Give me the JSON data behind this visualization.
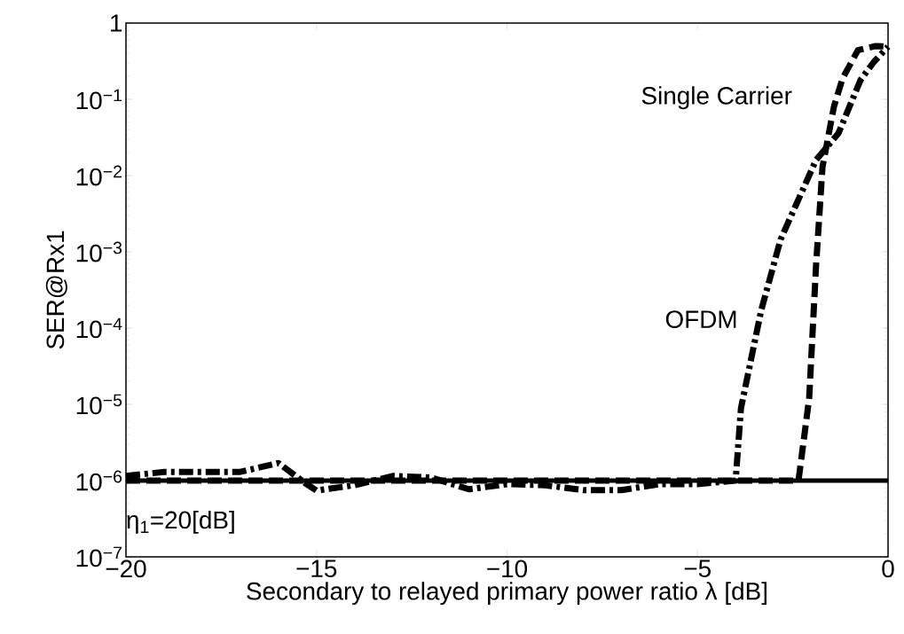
{
  "chart_data": {
    "type": "line",
    "xlabel": "Secondary to relayed primary power ratio λ [dB]",
    "ylabel": "SER@Rx1",
    "log": "y",
    "xlim": [
      -20,
      0
    ],
    "ylim": [
      1e-07,
      1
    ],
    "xticks": [
      {
        "value": -20,
        "label": "−20"
      },
      {
        "value": -15,
        "label": "−15"
      },
      {
        "value": -10,
        "label": "−10"
      },
      {
        "value": -5,
        "label": "−5"
      },
      {
        "value": 0,
        "label": "0"
      }
    ],
    "yticks": [
      {
        "value": 1e-07,
        "label": "10$^{−7}$"
      },
      {
        "value": 1e-06,
        "label": "10$^{−6}$"
      },
      {
        "value": 1e-05,
        "label": "10$^{−5}$"
      },
      {
        "value": 0.0001,
        "label": "10$^{−4}$"
      },
      {
        "value": 0.001,
        "label": "10$^{−3}$"
      },
      {
        "value": 0.01,
        "label": "10$^{−2}$"
      },
      {
        "value": 0.1,
        "label": "10$^{−1}$"
      },
      {
        "value": 1,
        "label": "1"
      }
    ],
    "series": [
      {
        "color": "#000000",
        "line_style": "dashdot",
        "x": [
          -20,
          -19,
          -17,
          -16,
          -15.3,
          -15,
          -14,
          -13,
          -12,
          -11,
          -10,
          -9,
          -8,
          -7,
          -6,
          -5,
          -4,
          -3.86,
          -3.33,
          -2.82,
          -1.89,
          -1.3,
          -0.72,
          -0.37,
          0
        ],
        "values": [
          1.15e-06,
          1.3e-06,
          1.3e-06,
          1.7e-06,
          9.3e-07,
          7.4e-07,
          8.7e-07,
          1.15e-06,
          1.1e-06,
          7.7e-07,
          9e-07,
          8.7e-07,
          7.5e-07,
          7.5e-07,
          9e-07,
          9e-07,
          1e-06,
          8.9e-06,
          0.00017,
          0.00145,
          0.016,
          0.036,
          0.18,
          0.31,
          0.49
        ]
      },
      {
        "color": "#000000",
        "line_style": "dashed",
        "x": [
          -20,
          -2.35,
          -2.07,
          -1.89,
          -1.72,
          -1.42,
          -1.19,
          -0.79,
          -0.33,
          0
        ],
        "values": [
          1e-06,
          1e-06,
          1.2e-05,
          0.00065,
          0.013,
          0.08,
          0.19,
          0.44,
          0.5,
          0.49
        ]
      }
    ],
    "ref_lines": [
      {
        "axis": "y",
        "value": 1e-06,
        "color": "#000000",
        "line_style": "solid"
      }
    ],
    "annotations": [
      "Single Carrier",
      "OFDM",
      "η$_{1}$=20[dB]"
    ]
  }
}
